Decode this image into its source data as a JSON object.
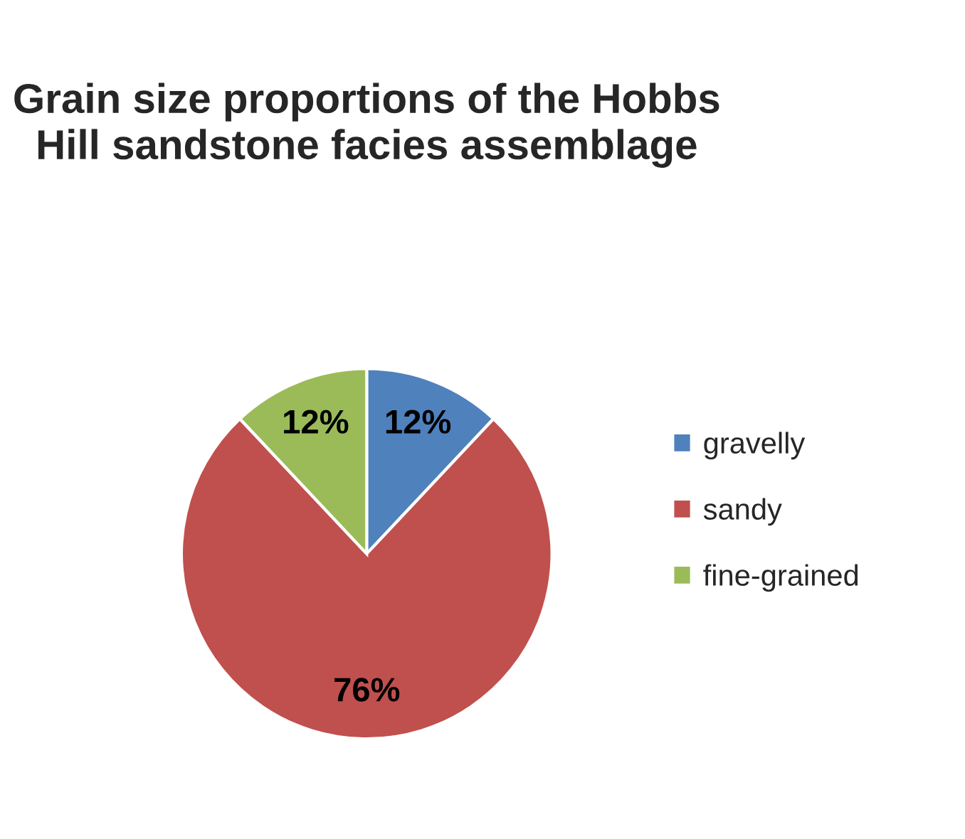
{
  "chart_data": {
    "type": "pie",
    "title": "Grain size proportions of the Hobbs\nHill sandstone facies assemblage",
    "categories": [
      "gravelly",
      "sandy",
      "fine-grained"
    ],
    "values": [
      12,
      76,
      12
    ],
    "colors": [
      "#4f81bd",
      "#c0504d",
      "#9bbb59"
    ],
    "value_labels": [
      "12%",
      "76%",
      "12%"
    ],
    "legend": "right"
  }
}
